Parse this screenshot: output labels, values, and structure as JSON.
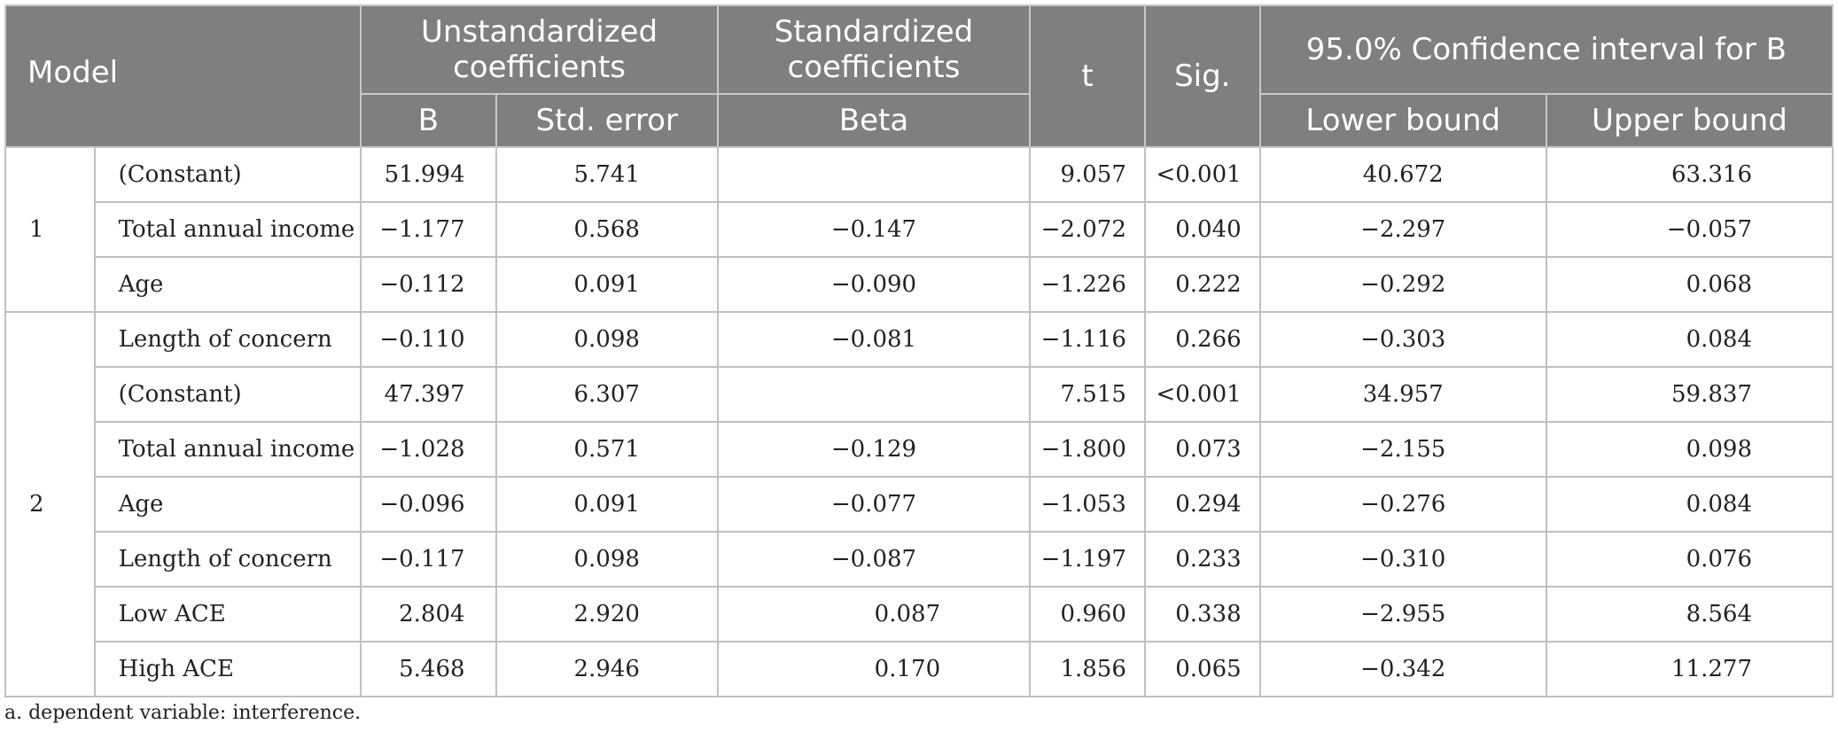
{
  "headers": {
    "model": "Model",
    "unstandardized": "Unstandardized coefficients",
    "standardized": "Standardized coefficients",
    "ci": "95.0% Confidence interval for B",
    "b": "B",
    "std_error": "Std. error",
    "beta": "Beta",
    "t": "t",
    "sig": "Sig.",
    "lower": "Lower bound",
    "upper": "Upper bound"
  },
  "models": [
    {
      "number": "1",
      "rows": [
        {
          "label": "(Constant)",
          "b": "51.994",
          "se": "5.741",
          "beta": "",
          "t": "9.057",
          "sig": "<0.001",
          "lower": "40.672",
          "upper": "63.316"
        },
        {
          "label": "Total annual income",
          "b": "−1.177",
          "se": "0.568",
          "beta": "−0.147",
          "t": "−2.072",
          "sig": "0.040",
          "lower": "−2.297",
          "upper": "−0.057"
        },
        {
          "label": "Age",
          "b": "−0.112",
          "se": "0.091",
          "beta": "−0.090",
          "t": "−1.226",
          "sig": "0.222",
          "lower": "−0.292",
          "upper": "0.068"
        }
      ]
    },
    {
      "number": "2",
      "rows": [
        {
          "label": "Length of concern",
          "b": "−0.110",
          "se": "0.098",
          "beta": "−0.081",
          "t": "−1.116",
          "sig": "0.266",
          "lower": "−0.303",
          "upper": "0.084"
        },
        {
          "label": "(Constant)",
          "b": "47.397",
          "se": "6.307",
          "beta": "",
          "t": "7.515",
          "sig": "<0.001",
          "lower": "34.957",
          "upper": "59.837"
        },
        {
          "label": "Total annual income",
          "b": "−1.028",
          "se": "0.571",
          "beta": "−0.129",
          "t": "−1.800",
          "sig": "0.073",
          "lower": "−2.155",
          "upper": "0.098"
        },
        {
          "label": "Age",
          "b": "−0.096",
          "se": "0.091",
          "beta": "−0.077",
          "t": "−1.053",
          "sig": "0.294",
          "lower": "−0.276",
          "upper": "0.084"
        },
        {
          "label": "Length of concern",
          "b": "−0.117",
          "se": "0.098",
          "beta": "−0.087",
          "t": "−1.197",
          "sig": "0.233",
          "lower": "−0.310",
          "upper": "0.076"
        },
        {
          "label": "Low ACE",
          "b": "2.804",
          "se": "2.920",
          "beta": "0.087",
          "t": "0.960",
          "sig": "0.338",
          "lower": "−2.955",
          "upper": "8.564"
        },
        {
          "label": "High ACE",
          "b": "5.468",
          "se": "2.946",
          "beta": "0.170",
          "t": "1.856",
          "sig": "0.065",
          "lower": "−0.342",
          "upper": "11.277"
        }
      ]
    }
  ],
  "footnote": "a. dependent variable: interference."
}
